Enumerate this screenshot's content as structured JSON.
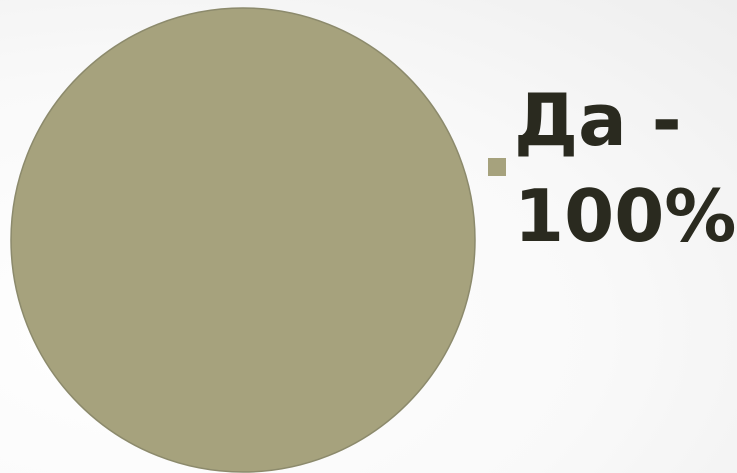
{
  "chart_data": {
    "type": "pie",
    "categories": [
      "Да"
    ],
    "values": [
      100
    ],
    "legend": {
      "position": "right",
      "entries": [
        {
          "category": "Да",
          "label": "Да - 100%",
          "color": "#a6a27d"
        }
      ]
    },
    "colors": {
      "slice": "#a6a27d",
      "slice_edge": "#8c8a6c"
    }
  }
}
